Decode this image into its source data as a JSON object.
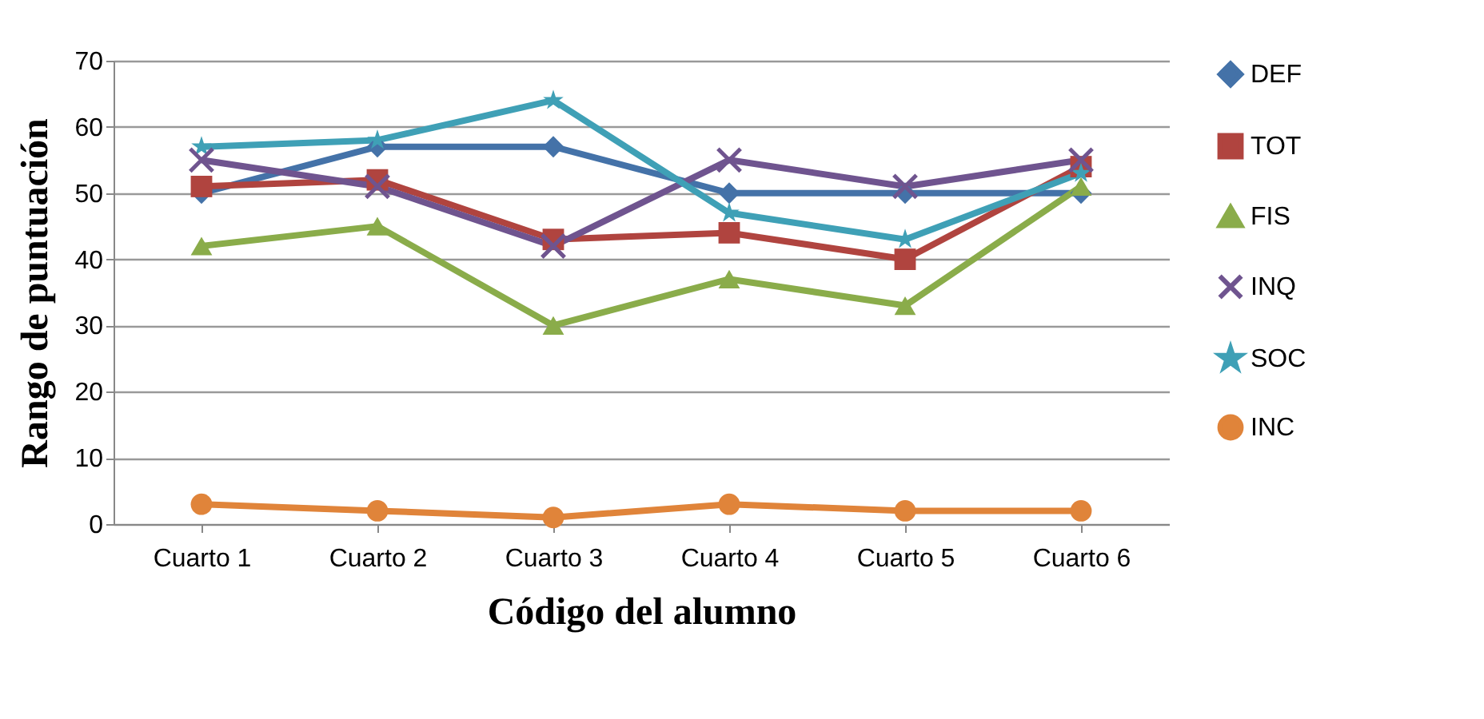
{
  "chart_data": {
    "type": "line",
    "xlabel": "Código del alumno",
    "ylabel": "Rango de puntuación",
    "categories": [
      "Cuarto 1",
      "Cuarto 2",
      "Cuarto 3",
      "Cuarto 4",
      "Cuarto 5",
      "Cuarto 6"
    ],
    "ylim": [
      0,
      70
    ],
    "yticks": [
      0,
      10,
      20,
      30,
      40,
      50,
      60,
      70
    ],
    "grid": "y",
    "legend": "right",
    "series": [
      {
        "name": "DEF",
        "color": "#4472a8",
        "marker": "diamond",
        "values": [
          50,
          57,
          57,
          50,
          50,
          50
        ]
      },
      {
        "name": "TOT",
        "color": "#b0443f",
        "marker": "square",
        "values": [
          51,
          52,
          43,
          44,
          40,
          54
        ]
      },
      {
        "name": "FIS",
        "color": "#8aac4a",
        "marker": "triangle",
        "values": [
          42,
          45,
          30,
          37,
          33,
          51
        ]
      },
      {
        "name": "INQ",
        "color": "#6f548f",
        "marker": "cross",
        "values": [
          55,
          51,
          42,
          55,
          51,
          55
        ]
      },
      {
        "name": "SOC",
        "color": "#3fa0b6",
        "marker": "star",
        "values": [
          57,
          58,
          64,
          47,
          43,
          53
        ]
      },
      {
        "name": "INC",
        "color": "#e0843a",
        "marker": "circle",
        "values": [
          3,
          2,
          1,
          3,
          2,
          2
        ]
      }
    ]
  }
}
